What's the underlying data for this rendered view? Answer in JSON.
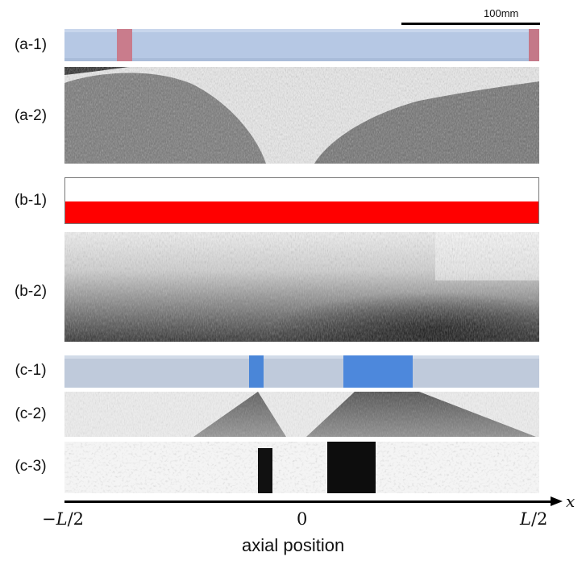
{
  "scale_bar": {
    "label": "100mm"
  },
  "panels": [
    {
      "id": "a1",
      "label": "(a-1)"
    },
    {
      "id": "a2",
      "label": "(a-2)"
    },
    {
      "id": "b1",
      "label": "(b-1)"
    },
    {
      "id": "b2",
      "label": "(b-2)"
    },
    {
      "id": "c1",
      "label": "(c-1)"
    },
    {
      "id": "c2",
      "label": "(c-2)"
    },
    {
      "id": "c3",
      "label": "(c-3)"
    }
  ],
  "axis": {
    "variable": "x",
    "tick_left_prefix": "−",
    "tick_left_var": "L",
    "tick_left_suffix": "/2",
    "tick_center": "0",
    "tick_right_var": "L",
    "tick_right_suffix": "/2",
    "xlabel": "axial position"
  },
  "colors": {
    "blue_tube": "#b4c6e2",
    "pink_band": "#c97a8a",
    "red_fill": "#ff0000",
    "blue_band": "#3f7fd8",
    "dark": "#111111"
  }
}
